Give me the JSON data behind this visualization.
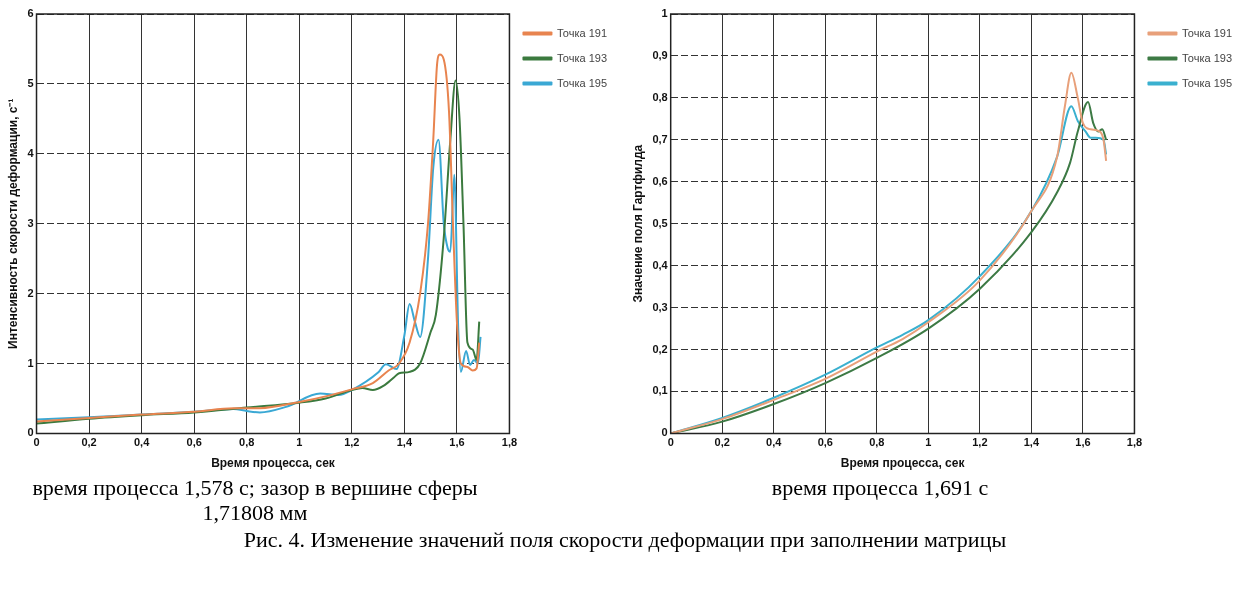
{
  "chart_data": [
    {
      "type": "line",
      "xlabel": "Время процесса, сек",
      "ylabel": "Интенсивность скорости деформации, с⁻¹",
      "xlim": [
        0,
        1.8
      ],
      "ylim": [
        0,
        6
      ],
      "xticks": [
        {
          "value": 0,
          "label": "0"
        },
        {
          "value": 0.2,
          "label": "0,2"
        },
        {
          "value": 0.4,
          "label": "0,4"
        },
        {
          "value": 0.6,
          "label": "0,6"
        },
        {
          "value": 0.8,
          "label": "0,8"
        },
        {
          "value": 1,
          "label": "1"
        },
        {
          "value": 1.2,
          "label": "1,2"
        },
        {
          "value": 1.4,
          "label": "1,4"
        },
        {
          "value": 1.6,
          "label": "1,6"
        },
        {
          "value": 1.8,
          "label": "1,8"
        }
      ],
      "yticks": [
        0,
        1,
        2,
        3,
        4,
        5,
        6
      ],
      "grid": true,
      "legend": "top right",
      "marker": "none",
      "line_style": "solid",
      "annotations": [
        "время процесса 1,578 с; зазор в вершине сферы 1,71808 мм",
        "Рис. 4. Изменение значений поля скорости деформации при заполнении матрицы"
      ],
      "series": [
        {
          "name": "Точка 191",
          "color": "#e8844f",
          "x": [
            0,
            0.2,
            0.4,
            0.6,
            0.75,
            0.85,
            1.0,
            1.1,
            1.2,
            1.28,
            1.34,
            1.38,
            1.42,
            1.46,
            1.49,
            1.51,
            1.525,
            1.535,
            1.55,
            1.57,
            1.585,
            1.6,
            1.615,
            1.64,
            1.66,
            1.675,
            1.685
          ],
          "values": [
            0.17,
            0.22,
            0.27,
            0.31,
            0.36,
            0.36,
            0.45,
            0.53,
            0.63,
            0.72,
            0.9,
            1.0,
            1.3,
            2.0,
            3.0,
            4.2,
            5.3,
            5.42,
            5.35,
            4.6,
            3.0,
            1.6,
            1.0,
            0.95,
            0.9,
            0.93,
            1.3
          ]
        },
        {
          "name": "Точка 193",
          "color": "#3b7a3e",
          "x": [
            0,
            0.2,
            0.4,
            0.6,
            0.8,
            1.0,
            1.1,
            1.2,
            1.24,
            1.28,
            1.32,
            1.36,
            1.38,
            1.42,
            1.46,
            1.5,
            1.52,
            1.55,
            1.575,
            1.595,
            1.61,
            1.625,
            1.64,
            1.66,
            1.675,
            1.685
          ],
          "values": [
            0.14,
            0.21,
            0.26,
            0.3,
            0.37,
            0.44,
            0.5,
            0.62,
            0.65,
            0.62,
            0.68,
            0.8,
            0.86,
            0.88,
            1.0,
            1.45,
            1.7,
            2.8,
            4.2,
            5.05,
            4.5,
            3.0,
            1.3,
            1.2,
            1.05,
            1.6
          ]
        },
        {
          "name": "Точка 195",
          "color": "#3aa8d4",
          "x": [
            0,
            0.2,
            0.4,
            0.6,
            0.75,
            0.8,
            0.85,
            0.95,
            1.08,
            1.15,
            1.2,
            1.3,
            1.33,
            1.37,
            1.4,
            1.42,
            1.44,
            1.46,
            1.49,
            1.51,
            1.53,
            1.55,
            1.565,
            1.575,
            1.59,
            1.605,
            1.615,
            1.635,
            1.65,
            1.665,
            1.68,
            1.69
          ],
          "values": [
            0.2,
            0.23,
            0.27,
            0.31,
            0.35,
            0.32,
            0.3,
            0.38,
            0.57,
            0.55,
            0.62,
            0.87,
            0.99,
            0.92,
            1.4,
            1.85,
            1.6,
            1.38,
            2.5,
            3.8,
            4.2,
            3.0,
            2.65,
            2.6,
            3.7,
            1.5,
            0.88,
            1.18,
            0.98,
            1.05,
            1.0,
            1.38
          ]
        }
      ]
    },
    {
      "type": "line",
      "xlabel": "Время процесса, сек",
      "ylabel": "Значение поля Гартфилда",
      "xlim": [
        0,
        1.8
      ],
      "ylim": [
        0,
        1
      ],
      "xticks": [
        {
          "value": 0,
          "label": "0"
        },
        {
          "value": 0.2,
          "label": "0,2"
        },
        {
          "value": 0.4,
          "label": "0,4"
        },
        {
          "value": 0.6,
          "label": "0,6"
        },
        {
          "value": 0.8,
          "label": "0,8"
        },
        {
          "value": 1,
          "label": "1"
        },
        {
          "value": 1.2,
          "label": "1,2"
        },
        {
          "value": 1.4,
          "label": "1,4"
        },
        {
          "value": 1.6,
          "label": "1,6"
        },
        {
          "value": 1.8,
          "label": "1,8"
        }
      ],
      "yticks": [
        0,
        {
          "value": 0.1,
          "label": "0,1"
        },
        {
          "value": 0.2,
          "label": "0,2"
        },
        {
          "value": 0.3,
          "label": "0,3"
        },
        {
          "value": 0.4,
          "label": "0,4"
        },
        {
          "value": 0.5,
          "label": "0,5"
        },
        {
          "value": 0.6,
          "label": "0,6"
        },
        {
          "value": 0.7,
          "label": "0,7"
        },
        {
          "value": 0.8,
          "label": "0,8"
        },
        {
          "value": 0.9,
          "label": "0,9"
        },
        1
      ],
      "grid": true,
      "legend": "top right",
      "marker": "none",
      "line_style": "solid",
      "annotations": [
        "время процесса 1,691 с"
      ],
      "series": [
        {
          "name": "Точка 191",
          "color": "#e8a07a",
          "x": [
            0,
            0.2,
            0.4,
            0.6,
            0.8,
            0.9,
            1.0,
            1.2,
            1.4,
            1.5,
            1.53,
            1.555,
            1.58,
            1.6,
            1.63,
            1.665,
            1.68,
            1.69
          ],
          "values": [
            0,
            0.034,
            0.08,
            0.13,
            0.195,
            0.225,
            0.265,
            0.365,
            0.53,
            0.66,
            0.78,
            0.86,
            0.8,
            0.74,
            0.725,
            0.72,
            0.7,
            0.65
          ]
        },
        {
          "name": "Точка 193",
          "color": "#3d7a45",
          "x": [
            0,
            0.2,
            0.4,
            0.6,
            0.8,
            1.0,
            1.2,
            1.4,
            1.5,
            1.55,
            1.58,
            1.62,
            1.64,
            1.66,
            1.675,
            1.69
          ],
          "values": [
            0,
            0.028,
            0.07,
            0.12,
            0.18,
            0.25,
            0.345,
            0.48,
            0.575,
            0.645,
            0.72,
            0.79,
            0.74,
            0.72,
            0.725,
            0.7
          ]
        },
        {
          "name": "Точка 195",
          "color": "#3ab0cf",
          "x": [
            0,
            0.2,
            0.4,
            0.6,
            0.8,
            0.9,
            1.0,
            1.2,
            1.4,
            1.5,
            1.555,
            1.58,
            1.61,
            1.63,
            1.65,
            1.68,
            1.69
          ],
          "values": [
            0,
            0.037,
            0.085,
            0.14,
            0.205,
            0.235,
            0.27,
            0.375,
            0.53,
            0.66,
            0.78,
            0.745,
            0.72,
            0.705,
            0.705,
            0.7,
            0.665
          ]
        }
      ]
    }
  ]
}
